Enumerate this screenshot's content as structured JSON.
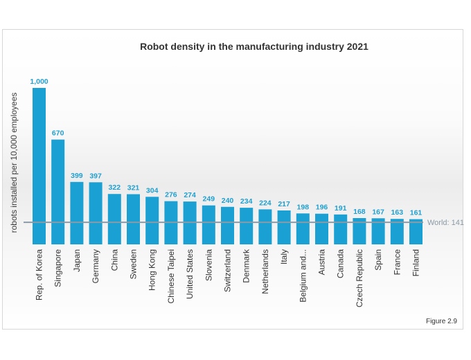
{
  "chart_data": {
    "type": "bar",
    "title": "Robot density in the manufacturing industry 2021",
    "xlabel": "",
    "ylabel": "robots installed per 10,000 employees",
    "ylim": [
      0,
      1000
    ],
    "grid": false,
    "legend": "none",
    "categories": [
      "Rep. of Korea",
      "Singapore",
      "Japan",
      "Germany",
      "China",
      "Sweden",
      "Hong Kong",
      "Chinese Taipei",
      "United States",
      "Slovenia",
      "Switzerland",
      "Denmark",
      "Netherlands",
      "Italy",
      "Belgium and...",
      "Austria",
      "Canada",
      "Czech Republic",
      "Spain",
      "France",
      "Finland"
    ],
    "values": [
      1000,
      670,
      399,
      397,
      322,
      321,
      304,
      276,
      274,
      249,
      240,
      234,
      224,
      217,
      198,
      196,
      191,
      168,
      167,
      163,
      161
    ],
    "value_labels": [
      "1,000",
      "670",
      "399",
      "397",
      "322",
      "321",
      "304",
      "276",
      "274",
      "249",
      "240",
      "234",
      "224",
      "217",
      "198",
      "196",
      "191",
      "168",
      "167",
      "163",
      "161"
    ],
    "reference_line": {
      "label": "World: 141",
      "value": 141
    },
    "colors": {
      "bar": "#1aa0d2",
      "value_label": "#1f9fd0",
      "reference": "#8a9aa6"
    }
  },
  "figure_label": "Figure 2.9"
}
